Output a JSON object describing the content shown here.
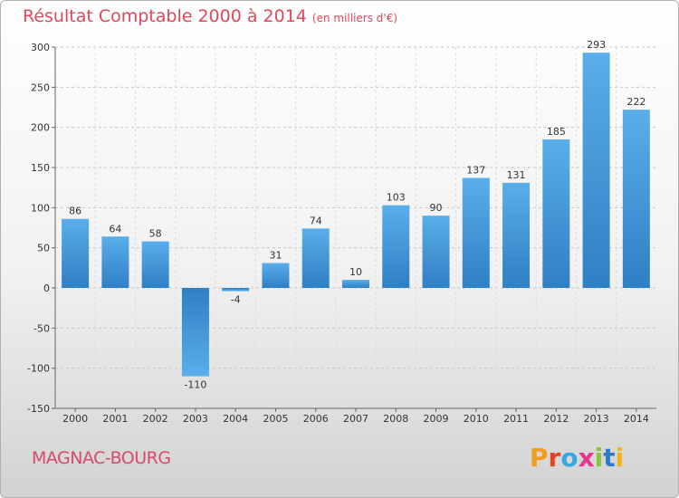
{
  "title": {
    "main": "Résultat Comptable 2000 à 2014",
    "unit": "(en milliers d'€)"
  },
  "commune": "MAGNAC-BOURG",
  "brand": {
    "letters": [
      "P",
      "r",
      "o",
      "x",
      "i",
      "t",
      "i"
    ]
  },
  "colors": {
    "title": "#e0475a",
    "bar_light": "#5aaeea",
    "bar_dark": "#2f7fc4"
  },
  "chart_data": {
    "type": "bar",
    "title": "Résultat Comptable 2000 à 2014",
    "xlabel": "",
    "ylabel": "",
    "ylim": [
      -150,
      300
    ],
    "yticks": [
      300,
      250,
      200,
      150,
      100,
      50,
      0,
      -50,
      -100,
      -150
    ],
    "ytick_labels": [
      "300",
      "250",
      "200",
      "150",
      "100",
      "50",
      "0",
      "-50",
      "-100",
      "-150"
    ],
    "grid": "horizontal",
    "categories": [
      "2000",
      "2001",
      "2002",
      "2003",
      "2004",
      "2005",
      "2006",
      "2007",
      "2008",
      "2009",
      "2010",
      "2011",
      "2012",
      "2013",
      "2014"
    ],
    "values": [
      86,
      64,
      58,
      -110,
      -4,
      31,
      74,
      10,
      103,
      90,
      137,
      131,
      185,
      293,
      222
    ],
    "value_labels": [
      "86",
      "64",
      "58",
      "-110",
      "-4",
      "31",
      "74",
      "10",
      "103",
      "90",
      "137",
      "131",
      "185",
      "293",
      "222"
    ]
  }
}
